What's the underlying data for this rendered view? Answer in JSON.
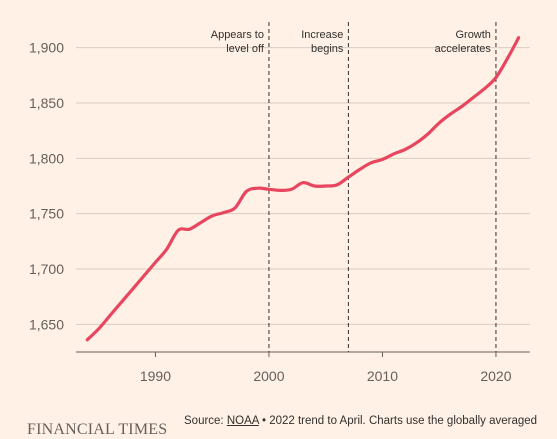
{
  "chart_data": {
    "type": "line",
    "title": "",
    "xlabel": "",
    "ylabel": "",
    "xlim": [
      1983,
      2023
    ],
    "ylim": [
      1625,
      1925
    ],
    "grid": "horizontal",
    "x_ticks": [
      1990,
      2000,
      2010,
      2020
    ],
    "x_tick_labels": [
      "1990",
      "2000",
      "2010",
      "2020"
    ],
    "y_ticks": [
      1650,
      1700,
      1750,
      1800,
      1850,
      1900
    ],
    "y_tick_labels": [
      "1,650",
      "1,700",
      "1,750",
      "1,800",
      "1,850",
      "1,900"
    ],
    "line_color": "#E8455F",
    "series": [
      {
        "x": [
          1984,
          1985,
          1986,
          1987,
          1988,
          1989,
          1990,
          1991,
          1992,
          1993,
          1994,
          1995,
          1996,
          1997,
          1998,
          1999,
          2000,
          2001,
          2002,
          2003,
          2004,
          2005,
          2006,
          2007,
          2008,
          2009,
          2010,
          2011,
          2012,
          2013,
          2014,
          2015,
          2016,
          2017,
          2018,
          2019,
          2020,
          2021,
          2022
        ],
        "y": [
          1636,
          1646,
          1658,
          1670,
          1682,
          1694,
          1706,
          1718,
          1735,
          1736,
          1742,
          1748,
          1751,
          1755,
          1770,
          1773,
          1772,
          1771,
          1772,
          1778,
          1775,
          1775,
          1776,
          1783,
          1790,
          1796,
          1799,
          1804,
          1808,
          1814,
          1822,
          1832,
          1840,
          1847,
          1855,
          1863,
          1873,
          1890,
          1909
        ]
      }
    ],
    "annotations": [
      {
        "x": 2000,
        "lines": [
          "Appears to",
          "level off"
        ]
      },
      {
        "x": 2007,
        "lines": [
          "Increase",
          "begins"
        ]
      },
      {
        "x": 2020,
        "lines": [
          "Growth",
          "accelerates"
        ]
      }
    ]
  },
  "footer": {
    "brand": "FINANCIAL TIMES",
    "source_prefix": "Source: ",
    "source_link": "NOAA",
    "source_rest": " • 2022 trend to April. Charts use the globally averaged",
    "source_line_2": ""
  },
  "colors": {
    "background": "#FFF1E5",
    "line": "#E8455F",
    "grid": "#D9CCC1",
    "text": "#66605C"
  }
}
